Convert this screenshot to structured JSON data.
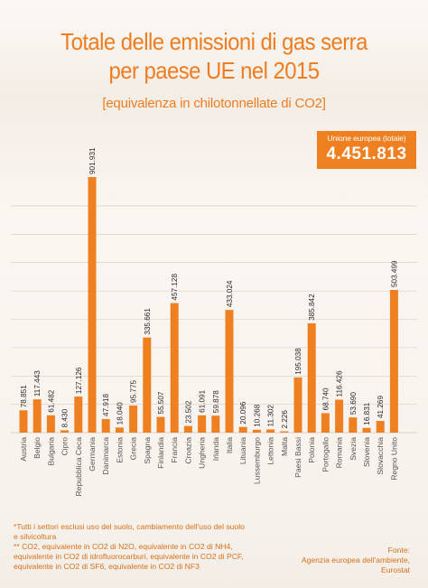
{
  "title_line1": "Totale delle emissioni di gas serra",
  "title_line2": "per paese UE nel 2015",
  "subtitle": "[equivalenza in chilotonnellate di CO2]",
  "total": {
    "label": "Unione europea (totale)",
    "value": "4.451.813"
  },
  "footnote": {
    "line1": "*Tutti i settori esclusi uso del suolo, cambiamento dell'uso del suolo",
    "line2": "e silvicoltura",
    "line3": "** CO2, equivalente in CO2 di N2O, equivalente in CO2 di NH4,",
    "line4": "equivalente in CO2 di idrofluorocarburi, equivalente in CO2 di PCF,",
    "line5": "equivalente in CO2 di SF6, equivalente in CO2 di NF3"
  },
  "source": {
    "line1": "Fonte:",
    "line2": "Agenzia europea dell'ambiente,",
    "line3": "Eurostat"
  },
  "colors": {
    "bar": "#ef8021",
    "text": "#ee7d22",
    "grid": "#cfc9c4"
  },
  "chart_data": {
    "type": "bar",
    "title": "Totale delle emissioni di gas serra per paese UE nel 2015",
    "subtitle": "[equivalenza in chilotonnellate di CO2]",
    "xlabel": "",
    "ylabel": "",
    "ylim": [
      0,
      1000000
    ],
    "grid": true,
    "categories": [
      "Austria",
      "Belgio",
      "Bulgaria",
      "Cipro",
      "Repubblica Ceca",
      "Germania",
      "Danimarca",
      "Estonia",
      "Grecia",
      "Spagna",
      "Finlandia",
      "Francia",
      "Croazia",
      "Ungheria",
      "Irlanda",
      "Italia",
      "Lituania",
      "Lussemburgo",
      "Lettonia",
      "Malta",
      "Paesi Bassi",
      "Polonia",
      "Portogallo",
      "Romania",
      "Svezia",
      "Slovenia",
      "Slovacchia",
      "Regno Unito"
    ],
    "values": [
      78851,
      117443,
      61482,
      8430,
      127126,
      901931,
      47918,
      18040,
      95775,
      335661,
      55507,
      457128,
      23502,
      61091,
      59878,
      433024,
      20096,
      10268,
      11302,
      2226,
      195038,
      385842,
      68740,
      116426,
      53690,
      16831,
      41269,
      503499
    ],
    "labels": [
      "78.851",
      "117.443",
      "61.482",
      "8.430",
      "127.126",
      "901.931",
      "47.918",
      "18.040",
      "95.775",
      "335.661",
      "55.507",
      "457.128",
      "23.502",
      "61.091",
      "59.878",
      "433.024",
      "20.096",
      "10.268",
      "11.302",
      "2.226",
      "195.038",
      "385.842",
      "68.740",
      "116.426",
      "53.690",
      "16.831",
      "41.269",
      "503.499"
    ]
  }
}
